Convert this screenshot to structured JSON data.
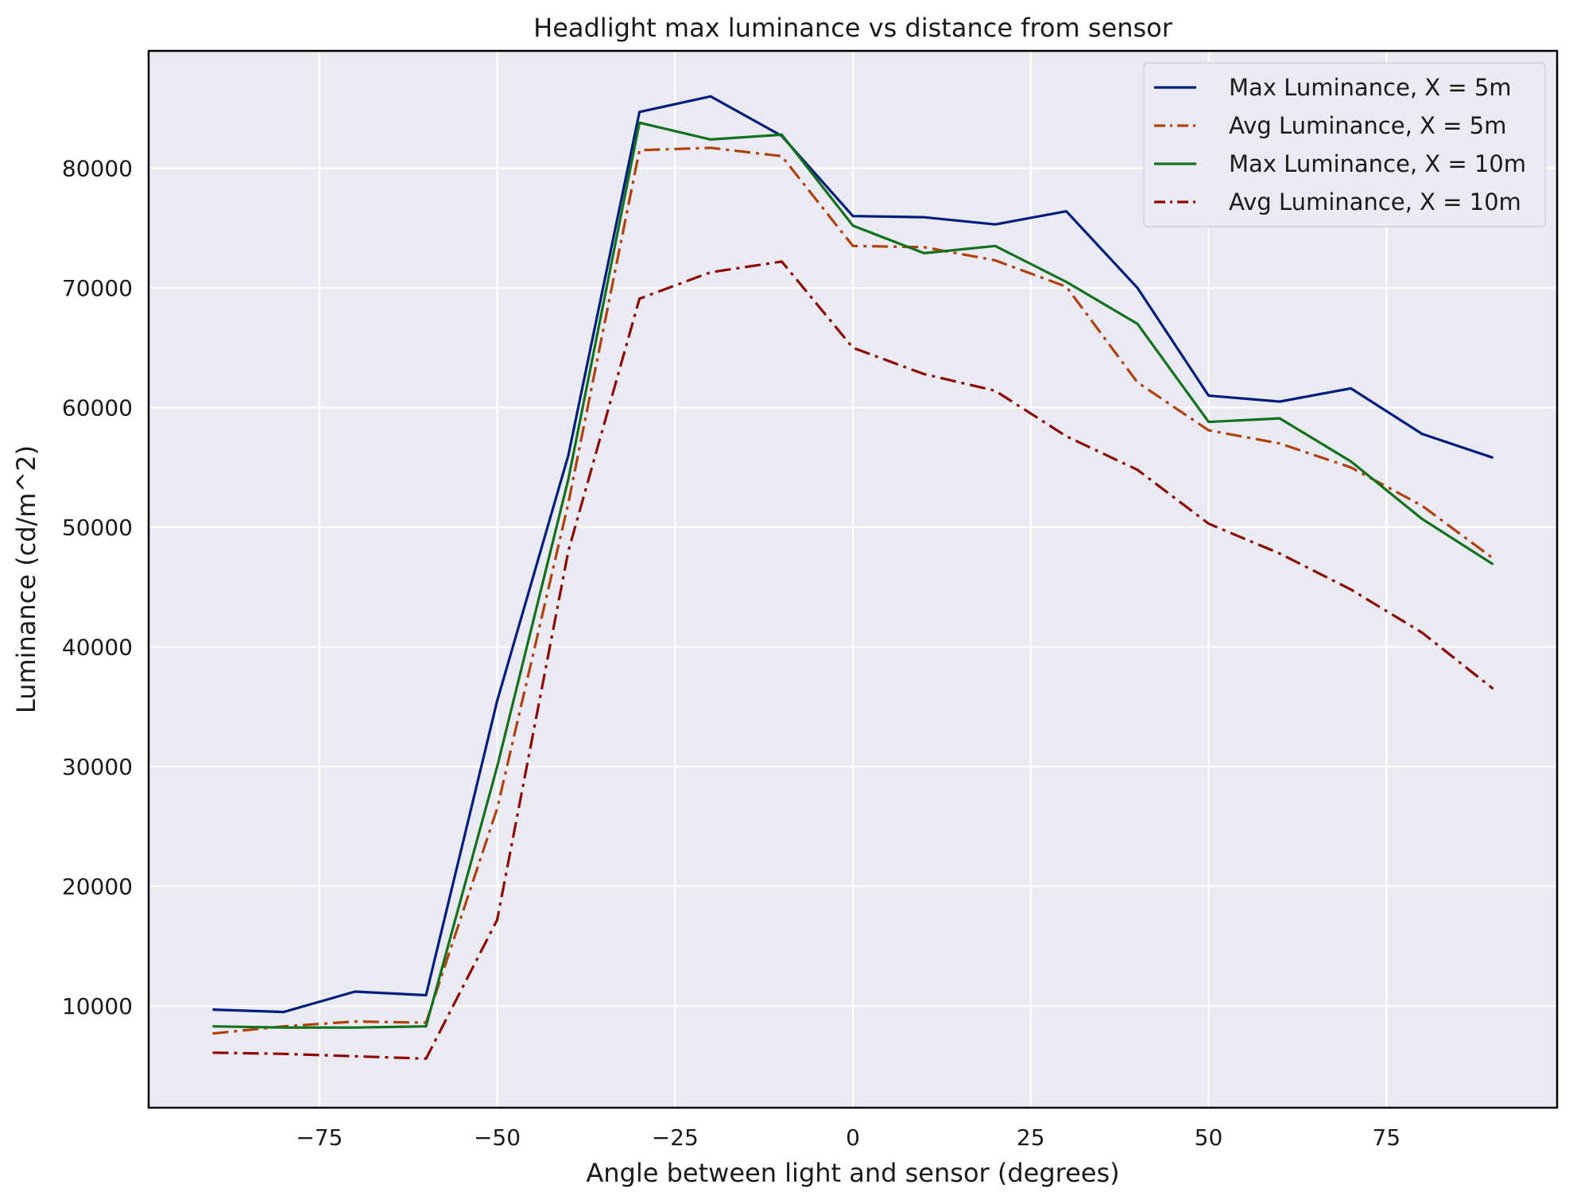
{
  "chart_data": {
    "type": "line",
    "title": "Headlight max luminance vs distance from sensor",
    "xlabel": "Angle between light and sensor (degrees)",
    "ylabel": "Luminance (cd/m^2)",
    "xlim": [
      -99,
      99
    ],
    "ylim": [
      1500,
      89800
    ],
    "xticks": [
      -75,
      -50,
      -25,
      0,
      25,
      50,
      75
    ],
    "xtick_labels": [
      "−75",
      "−50",
      "−25",
      "0",
      "25",
      "50",
      "75"
    ],
    "yticks": [
      10000,
      20000,
      30000,
      40000,
      50000,
      60000,
      70000,
      80000
    ],
    "ytick_labels": [
      "10000",
      "20000",
      "30000",
      "40000",
      "50000",
      "60000",
      "70000",
      "80000"
    ],
    "grid": true,
    "background": "#eaeaf2",
    "legend_position": "top-right",
    "x": [
      -90,
      -80,
      -70,
      -60,
      -50,
      -40,
      -30,
      -20,
      -10,
      0,
      10,
      20,
      30,
      40,
      50,
      60,
      70,
      80,
      90
    ],
    "series": [
      {
        "name": "Max Luminance, X = 5m",
        "color": "#001c7f",
        "style": "solid",
        "values": [
          9700,
          9500,
          11200,
          10900,
          35500,
          56000,
          84700,
          86000,
          82700,
          76000,
          75900,
          75300,
          76400,
          70000,
          61000,
          60500,
          61600,
          57800,
          55800
        ]
      },
      {
        "name": "Avg Luminance, X = 5m",
        "color": "#b1400d",
        "style": "dashdot",
        "values": [
          7700,
          8300,
          8700,
          8600,
          26500,
          52000,
          81500,
          81700,
          81000,
          73500,
          73400,
          72300,
          70100,
          62100,
          58100,
          57000,
          55000,
          51800,
          47400
        ]
      },
      {
        "name": "Max Luminance, X = 10m",
        "color": "#12711c",
        "style": "solid",
        "values": [
          8300,
          8200,
          8200,
          8300,
          30000,
          54000,
          83800,
          82400,
          82800,
          75200,
          72900,
          73500,
          70500,
          67000,
          58800,
          59100,
          55500,
          50700,
          46900
        ]
      },
      {
        "name": "Avg Luminance, X = 10m",
        "color": "#8c0800",
        "style": "dashdot",
        "values": [
          6100,
          6000,
          5800,
          5600,
          17200,
          48000,
          69100,
          71300,
          72200,
          65000,
          62800,
          61400,
          57600,
          54800,
          50300,
          47800,
          44800,
          41200,
          36500
        ]
      }
    ]
  }
}
